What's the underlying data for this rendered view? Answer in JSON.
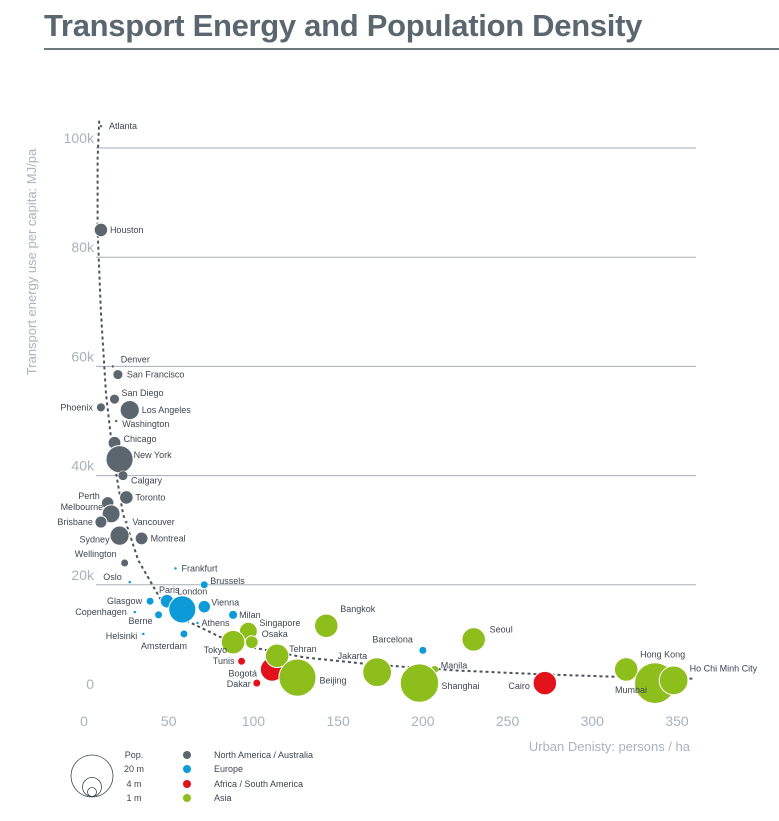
{
  "chart_data": {
    "type": "scatter",
    "title": "Transport Energy and Population Density",
    "xlabel": "Urban Denisty: persons / ha",
    "ylabel": "Transport energy use per capita: MJ/pa",
    "xlim": [
      0,
      365
    ],
    "ylim": [
      0,
      105000
    ],
    "x_ticks": [
      "0",
      "50",
      "100",
      "150",
      "200",
      "250",
      "300",
      "350"
    ],
    "y_ticks": [
      "0",
      "20k",
      "40k",
      "60k",
      "80k",
      "100k"
    ],
    "grid": "horizontal",
    "colors": {
      "North America / Australia": "#5b666f",
      "Europe": "#0d9ad8",
      "Africa / South America": "#e2121b",
      "Asia": "#8dbe1c",
      "trend": "#4a545c"
    },
    "legend": {
      "size_title": "Pop.",
      "sizes": [
        "20 m",
        "4 m",
        "1 m"
      ],
      "regions": [
        "North America / Australia",
        "Europe",
        "Africa / South America",
        "Asia"
      ]
    },
    "series": [
      {
        "name": "North America / Australia",
        "points": [
          {
            "label": "Atlanta",
            "x": 10,
            "y": 104000,
            "pop": 0.05
          },
          {
            "label": "Houston",
            "x": 10,
            "y": 85000,
            "pop": 2
          },
          {
            "label": "Denver",
            "x": 17,
            "y": 60000,
            "pop": 0.05
          },
          {
            "label": "San Francisco",
            "x": 20,
            "y": 58500,
            "pop": 1
          },
          {
            "label": "San Diego",
            "x": 18,
            "y": 54000,
            "pop": 1
          },
          {
            "label": "Phoenix",
            "x": 10,
            "y": 52500,
            "pop": 0.8
          },
          {
            "label": "Los Angeles",
            "x": 27,
            "y": 52000,
            "pop": 4
          },
          {
            "label": "Washington",
            "x": 19,
            "y": 50000,
            "pop": 0.05
          },
          {
            "label": "Chicago",
            "x": 18,
            "y": 46000,
            "pop": 1.8
          },
          {
            "label": "New York",
            "x": 21,
            "y": 43000,
            "pop": 8
          },
          {
            "label": "Calgary",
            "x": 23,
            "y": 40000,
            "pop": 1
          },
          {
            "label": "Perth",
            "x": 14,
            "y": 35000,
            "pop": 1.7
          },
          {
            "label": "Toronto",
            "x": 25,
            "y": 36000,
            "pop": 2
          },
          {
            "label": "Melbourne",
            "x": 16,
            "y": 33000,
            "pop": 3.5
          },
          {
            "label": "Brisbane",
            "x": 10,
            "y": 31500,
            "pop": 1.6
          },
          {
            "label": "Vancouver",
            "x": 25,
            "y": 31500,
            "pop": 0.05
          },
          {
            "label": "Sydney",
            "x": 21,
            "y": 29000,
            "pop": 4
          },
          {
            "label": "Montreal",
            "x": 34,
            "y": 28500,
            "pop": 1.8
          },
          {
            "label": "Wellington",
            "x": 24,
            "y": 24000,
            "pop": 0.6
          }
        ]
      },
      {
        "name": "Europe",
        "points": [
          {
            "label": "Frankfurt",
            "x": 54,
            "y": 23000,
            "pop": 0.05
          },
          {
            "label": "Oslo",
            "x": 27,
            "y": 20500,
            "pop": 0.05
          },
          {
            "label": "Brussels",
            "x": 71,
            "y": 20000,
            "pop": 0.6
          },
          {
            "label": "Glasgow",
            "x": 39,
            "y": 17000,
            "pop": 0.6
          },
          {
            "label": "Paris",
            "x": 49,
            "y": 17000,
            "pop": 2
          },
          {
            "label": "Copenhagen",
            "x": 30,
            "y": 15000,
            "pop": 0.05
          },
          {
            "label": "London",
            "x": 58,
            "y": 15500,
            "pop": 8
          },
          {
            "label": "Vienna",
            "x": 71,
            "y": 16000,
            "pop": 1.7
          },
          {
            "label": "Berne",
            "x": 44,
            "y": 14500,
            "pop": 0.6
          },
          {
            "label": "Milan",
            "x": 88,
            "y": 14500,
            "pop": 0.8
          },
          {
            "label": "Athens",
            "x": 67,
            "y": 13000,
            "pop": 0.05
          },
          {
            "label": "Helsinki",
            "x": 35,
            "y": 11000,
            "pop": 0.05
          },
          {
            "label": "Amsterdam",
            "x": 59,
            "y": 11000,
            "pop": 0.6
          },
          {
            "label": "Barcelona",
            "x": 200,
            "y": 8000,
            "pop": 0.6
          }
        ]
      },
      {
        "name": "Africa / South America",
        "points": [
          {
            "label": "Tunis",
            "x": 93,
            "y": 6000,
            "pop": 0.6
          },
          {
            "label": "Bogotá",
            "x": 111,
            "y": 4500,
            "pop": 6
          },
          {
            "label": "Dakar",
            "x": 102,
            "y": 2000,
            "pop": 0.6
          },
          {
            "label": "Cairo",
            "x": 272,
            "y": 2000,
            "pop": 6
          }
        ]
      },
      {
        "name": "Asia",
        "points": [
          {
            "label": "Bangkok",
            "x": 143,
            "y": 12500,
            "pop": 6
          },
          {
            "label": "Singapore",
            "x": 97,
            "y": 11500,
            "pop": 3.5
          },
          {
            "label": "Osaka",
            "x": 99,
            "y": 9500,
            "pop": 1.8
          },
          {
            "label": "Tokyo",
            "x": 88,
            "y": 9500,
            "pop": 6
          },
          {
            "label": "Seoul",
            "x": 230,
            "y": 10000,
            "pop": 6
          },
          {
            "label": "Tehran",
            "x": 114,
            "y": 7000,
            "pop": 6
          },
          {
            "label": "Jakarta",
            "x": 173,
            "y": 4000,
            "pop": 9
          },
          {
            "label": "Manila",
            "x": 207,
            "y": 4500,
            "pop": 0.6
          },
          {
            "label": "Beijing",
            "x": 126,
            "y": 3000,
            "pop": 15
          },
          {
            "label": "Shanghai",
            "x": 198,
            "y": 2000,
            "pop": 16
          },
          {
            "label": "Hong Kong",
            "x": 320,
            "y": 4500,
            "pop": 6
          },
          {
            "label": "Mumbai",
            "x": 337,
            "y": 2000,
            "pop": 18
          },
          {
            "label": "Ho Chi Minh City",
            "x": 348,
            "y": 2500,
            "pop": 9
          }
        ]
      }
    ]
  }
}
